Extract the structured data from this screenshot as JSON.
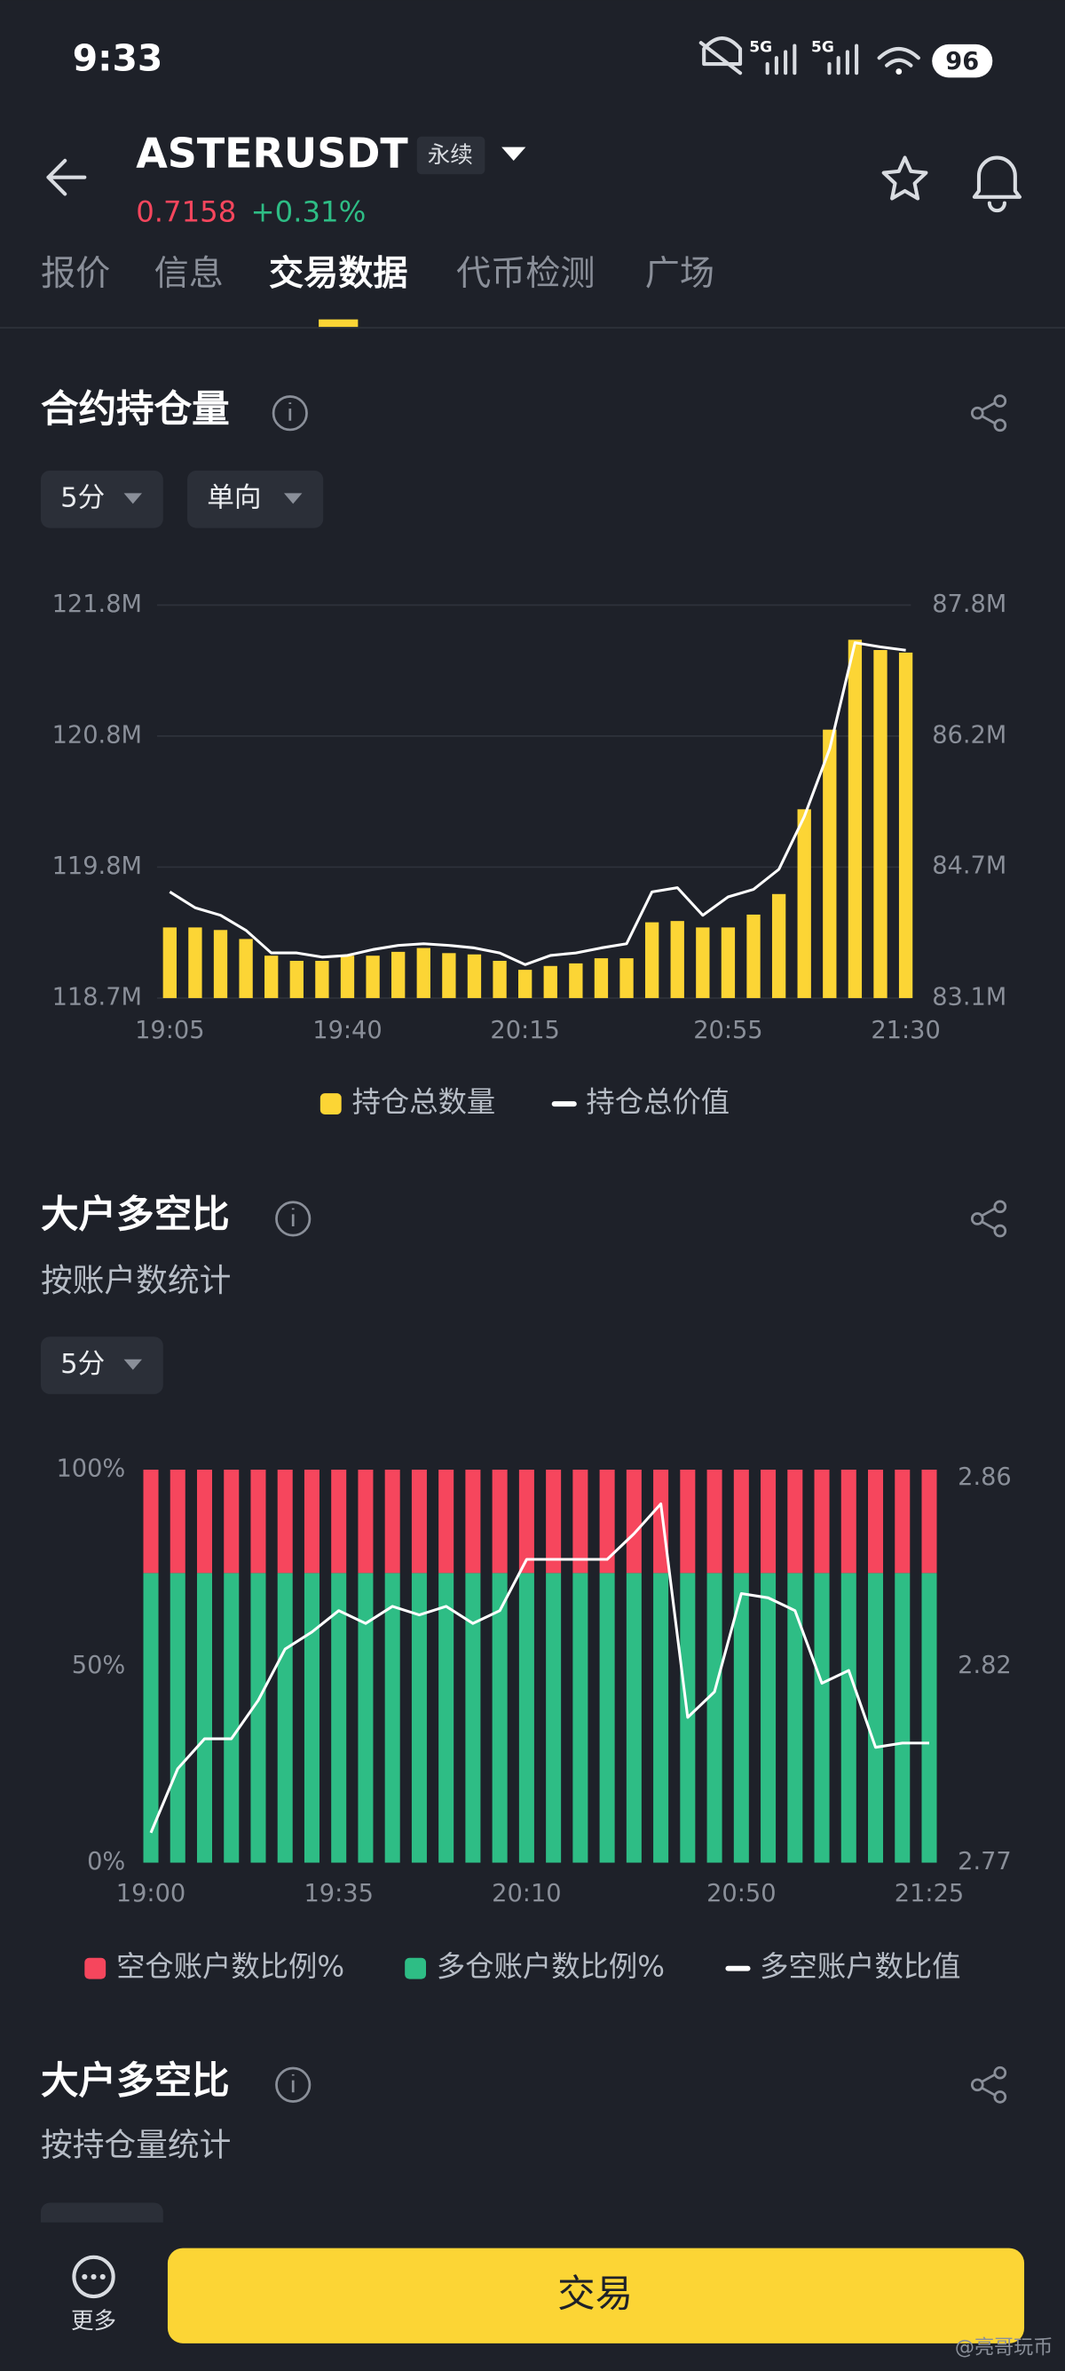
{
  "status_bar": {
    "time": "9:33",
    "signal": [
      "5G",
      "5G"
    ],
    "battery": "96"
  },
  "header": {
    "symbol": "ASTERUSDT",
    "contract_type": "永续",
    "price": "0.7158",
    "change": "+0.31%"
  },
  "tabs": [
    "报价",
    "信息",
    "交易数据",
    "代币检测",
    "广场"
  ],
  "active_tab": 2,
  "chart_data": [
    {
      "type": "combo",
      "title": "合约持仓量",
      "filters": [
        "5分",
        "单向"
      ],
      "categories": [
        "19:05",
        null,
        null,
        null,
        null,
        null,
        null,
        "19:40",
        null,
        null,
        null,
        null,
        null,
        null,
        "20:15",
        null,
        null,
        null,
        null,
        null,
        null,
        null,
        "20:55",
        null,
        null,
        null,
        null,
        null,
        null,
        "21:30"
      ],
      "series": [
        {
          "name": "持仓总数量",
          "type": "bar",
          "color": "#fcd535",
          "values": [
            119.29,
            119.29,
            119.27,
            119.2,
            119.07,
            119.03,
            119.03,
            119.07,
            119.07,
            119.1,
            119.13,
            119.09,
            119.08,
            119.03,
            118.96,
            118.99,
            119.01,
            119.05,
            119.05,
            119.33,
            119.34,
            119.29,
            119.29,
            119.39,
            119.55,
            120.21,
            120.83,
            121.53,
            121.45,
            121.43
          ]
        },
        {
          "name": "持仓总价值",
          "type": "line",
          "color": "#ffffff",
          "axis": "y2",
          "values": [
            84.37,
            84.18,
            84.09,
            83.91,
            83.64,
            83.64,
            83.59,
            83.61,
            83.68,
            83.73,
            83.75,
            83.73,
            83.7,
            83.64,
            83.5,
            83.61,
            83.64,
            83.7,
            83.75,
            84.37,
            84.42,
            84.09,
            84.31,
            84.4,
            84.64,
            85.27,
            86.08,
            87.35,
            87.3,
            87.26
          ]
        }
      ],
      "ylim": [
        118.74,
        121.8
      ],
      "yticks": [
        {
          "value": 118.74,
          "label": "118.7M"
        },
        {
          "value": 119.76,
          "label": "119.8M"
        },
        {
          "value": 120.78,
          "label": "120.8M"
        },
        {
          "value": 121.8,
          "label": "121.8M"
        }
      ],
      "y2lim": [
        83.1,
        87.8
      ],
      "y2ticks": [
        {
          "value": 83.1,
          "label": "83.1M"
        },
        {
          "value": 84.67,
          "label": "84.7M"
        },
        {
          "value": 86.23,
          "label": "86.2M"
        },
        {
          "value": 87.8,
          "label": "87.8M"
        }
      ],
      "grid": true,
      "stacked": false
    },
    {
      "type": "combo",
      "title": "大户多空比",
      "subtitle": "按账户数统计",
      "filters": [
        "5分"
      ],
      "categories": [
        "19:00",
        null,
        null,
        null,
        null,
        null,
        null,
        "19:35",
        null,
        null,
        null,
        null,
        null,
        null,
        "20:10",
        null,
        null,
        null,
        null,
        null,
        null,
        null,
        "20:50",
        null,
        null,
        null,
        null,
        null,
        null,
        "21:25"
      ],
      "series": [
        {
          "name": "空仓账户数比例%",
          "type": "bar",
          "color": "#f6465d",
          "values": [
            26.3,
            26.3,
            26.3,
            26.3,
            26.3,
            26.3,
            26.3,
            26.3,
            26.3,
            26.3,
            26.3,
            26.3,
            26.3,
            26.3,
            26.3,
            26.3,
            26.3,
            26.3,
            26.3,
            26.3,
            26.3,
            26.3,
            26.3,
            26.3,
            26.3,
            26.3,
            26.3,
            26.3,
            26.3,
            26.3
          ]
        },
        {
          "name": "多仓账户数比例%",
          "type": "bar",
          "color": "#2ebd85",
          "values": [
            73.7,
            73.7,
            73.7,
            73.7,
            73.7,
            73.7,
            73.7,
            73.7,
            73.7,
            73.7,
            73.7,
            73.7,
            73.7,
            73.7,
            73.7,
            73.7,
            73.7,
            73.7,
            73.7,
            73.7,
            73.7,
            73.7,
            73.7,
            73.7,
            73.7,
            73.7,
            73.7,
            73.7,
            73.7,
            73.7
          ]
        },
        {
          "name": "多空账户数比值",
          "type": "line",
          "color": "#ffffff",
          "axis": "y2",
          "values": [
            2.777,
            2.792,
            2.799,
            2.799,
            2.808,
            2.82,
            2.824,
            2.829,
            2.826,
            2.83,
            2.828,
            2.83,
            2.826,
            2.829,
            2.841,
            2.841,
            2.841,
            2.841,
            2.847,
            2.854,
            2.804,
            2.81,
            2.833,
            2.832,
            2.829,
            2.812,
            2.815,
            2.797,
            2.798,
            2.798
          ]
        }
      ],
      "ylim": [
        0,
        100
      ],
      "yticks": [
        {
          "value": 0,
          "label": "0%"
        },
        {
          "value": 50,
          "label": "50%"
        },
        {
          "value": 100,
          "label": "100%"
        }
      ],
      "y2lim": [
        2.77,
        2.862
      ],
      "y2ticks": [
        2.77,
        {
          "value": 2.816,
          "label": "2.82"
        },
        2.86
      ],
      "grid": false,
      "stacked": true
    }
  ],
  "next_section": {
    "title": "大户多空比",
    "subtitle": "按持仓量统计"
  },
  "bottom_bar": {
    "more": "更多",
    "trade": "交易"
  },
  "watermark": "@亮哥玩币"
}
